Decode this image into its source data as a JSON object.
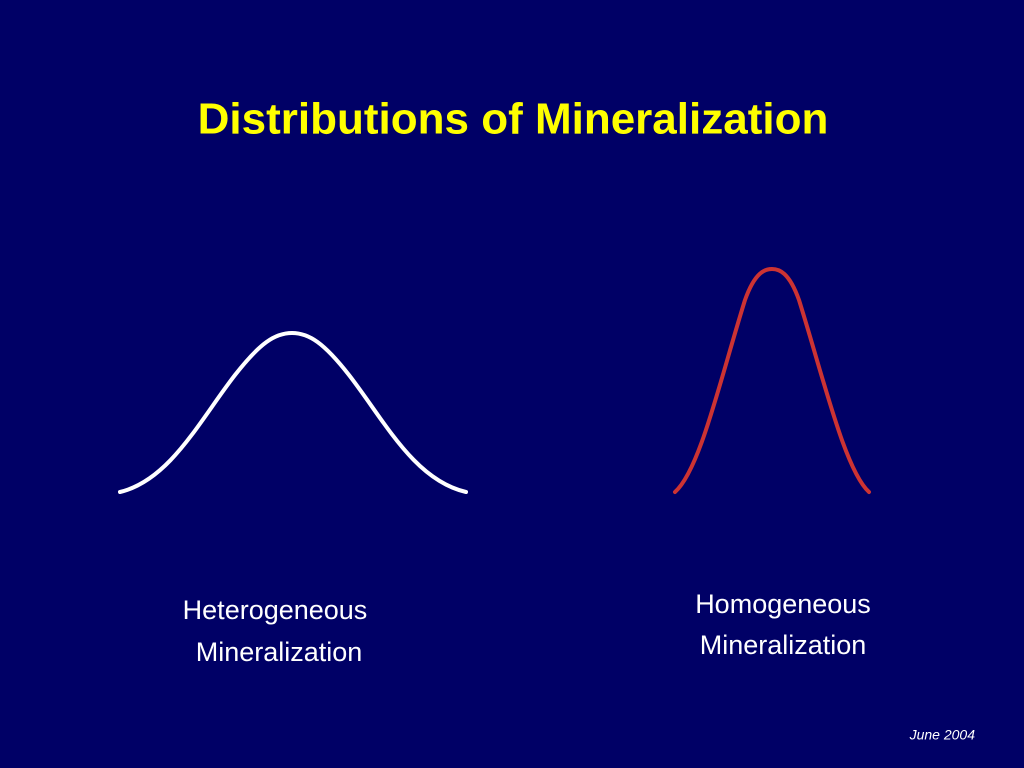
{
  "title": "Distributions of Mineralization",
  "labels": [
    {
      "lines": [
        "Heterogeneous",
        "Mineralization"
      ]
    },
    {
      "lines": [
        "Homogeneous",
        "Mineralization"
      ]
    }
  ],
  "footer": "June 2004"
}
